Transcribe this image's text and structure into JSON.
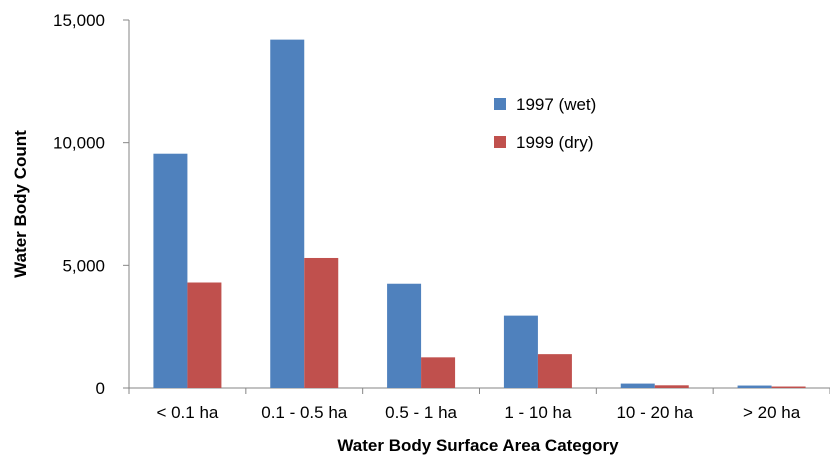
{
  "chart_data": {
    "type": "bar",
    "title": "",
    "xlabel": "Water Body Surface Area Category",
    "ylabel": "Water Body Count",
    "categories": [
      "< 0.1 ha",
      "0.1 - 0.5 ha",
      "0.5 - 1 ha",
      "1 - 10 ha",
      "10 - 20 ha",
      "> 20 ha"
    ],
    "series": [
      {
        "name": "1997 (wet)",
        "color": "#4f81bd",
        "values": [
          9550,
          14200,
          4250,
          2950,
          180,
          100
        ]
      },
      {
        "name": "1999 (dry)",
        "color": "#c0504d",
        "values": [
          4300,
          5300,
          1250,
          1380,
          110,
          60
        ]
      }
    ],
    "ylim": [
      0,
      15000
    ],
    "yticks": [
      "0",
      "5,000",
      "10,000",
      "15,000"
    ],
    "ytick_values": [
      0,
      5000,
      10000,
      15000
    ],
    "grid": false,
    "legend_position": "upper-right inside plot"
  }
}
